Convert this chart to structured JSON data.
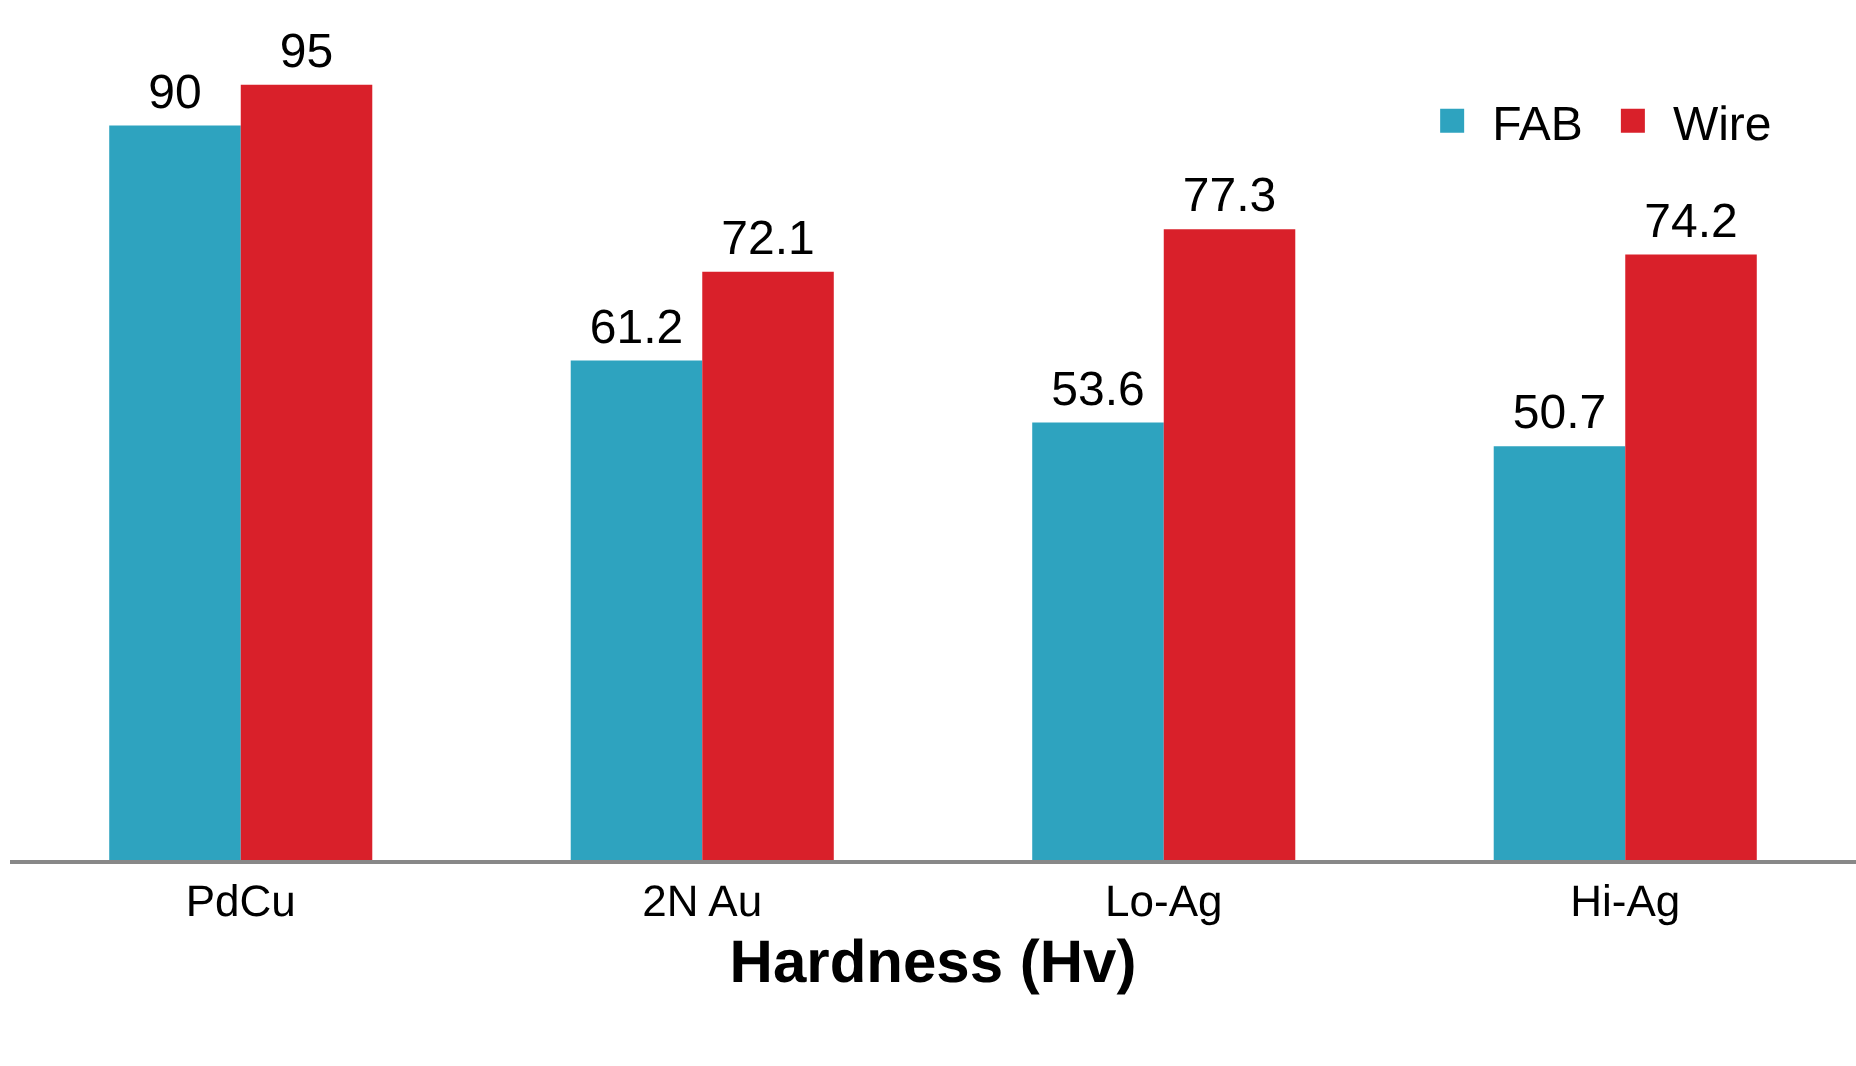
{
  "chart_data": {
    "type": "bar",
    "xlabel": "Hardness (Hv)",
    "categories": [
      "PdCu",
      "2N Au",
      "Lo-Ag",
      "Hi-Ag"
    ],
    "series": [
      {
        "name": "FAB",
        "color": "#2ea3bf",
        "values": [
          90,
          61.2,
          53.6,
          50.7
        ]
      },
      {
        "name": "Wire",
        "color": "#d9202a",
        "values": [
          95,
          72.1,
          77.3,
          74.2
        ]
      }
    ],
    "data_labels": true,
    "legend": "top right",
    "tick_labels": "x"
  }
}
